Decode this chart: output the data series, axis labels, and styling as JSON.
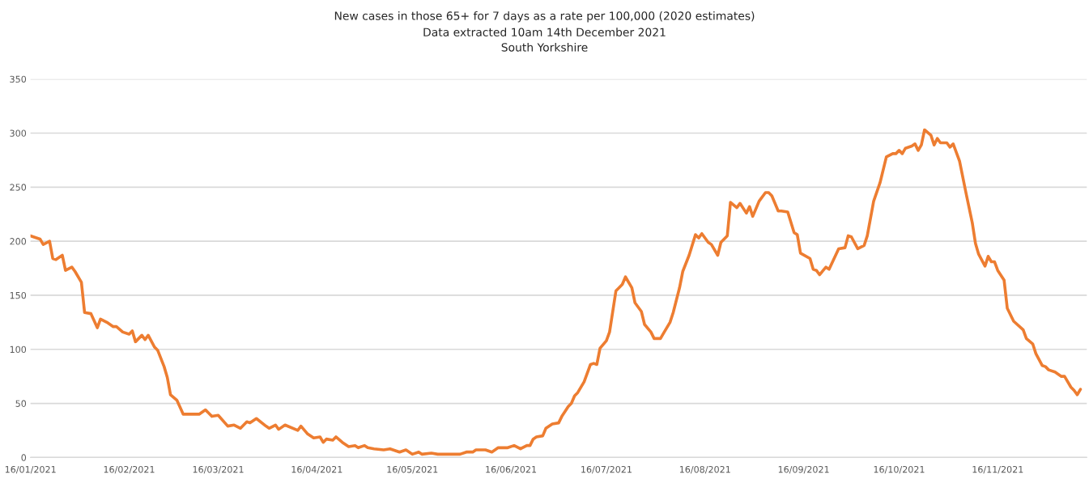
{
  "chart_data": {
    "type": "line",
    "title": "New cases in those 65+ for 7 days as a rate per 100,000 (2020 estimates)",
    "subtitle": "Data extracted 10am 14th December 2021\nSouth Yorkshire",
    "x": [
      "2021-01-16",
      "2021-01-19",
      "2021-01-20",
      "2021-01-22",
      "2021-01-23",
      "2021-01-24",
      "2021-01-26",
      "2021-01-27",
      "2021-01-29",
      "2021-01-30",
      "2021-02-01",
      "2021-02-02",
      "2021-02-04",
      "2021-02-06",
      "2021-02-07",
      "2021-02-09",
      "2021-02-11",
      "2021-02-12",
      "2021-02-14",
      "2021-02-16",
      "2021-02-17",
      "2021-02-18",
      "2021-02-20",
      "2021-02-21",
      "2021-02-22",
      "2021-02-24",
      "2021-02-25",
      "2021-02-27",
      "2021-02-28",
      "2021-03-01",
      "2021-03-03",
      "2021-03-05",
      "2021-03-07",
      "2021-03-09",
      "2021-03-10",
      "2021-03-12",
      "2021-03-14",
      "2021-03-16",
      "2021-03-19",
      "2021-03-21",
      "2021-03-23",
      "2021-03-25",
      "2021-03-26",
      "2021-03-28",
      "2021-03-31",
      "2021-04-01",
      "2021-04-03",
      "2021-04-04",
      "2021-04-06",
      "2021-04-10",
      "2021-04-11",
      "2021-04-13",
      "2021-04-15",
      "2021-04-17",
      "2021-04-18",
      "2021-04-19",
      "2021-04-21",
      "2021-04-22",
      "2021-04-24",
      "2021-04-26",
      "2021-04-28",
      "2021-04-29",
      "2021-05-01",
      "2021-05-02",
      "2021-05-04",
      "2021-05-07",
      "2021-05-09",
      "2021-05-12",
      "2021-05-14",
      "2021-05-16",
      "2021-05-18",
      "2021-05-19",
      "2021-05-22",
      "2021-05-24",
      "2021-05-31",
      "2021-06-02",
      "2021-06-04",
      "2021-06-05",
      "2021-06-08",
      "2021-06-10",
      "2021-06-12",
      "2021-06-15",
      "2021-06-17",
      "2021-06-19",
      "2021-06-21",
      "2021-06-22",
      "2021-06-23",
      "2021-06-24",
      "2021-06-26",
      "2021-06-27",
      "2021-06-29",
      "2021-07-01",
      "2021-07-02",
      "2021-07-04",
      "2021-07-05",
      "2021-07-06",
      "2021-07-07",
      "2021-07-09",
      "2021-07-11",
      "2021-07-12",
      "2021-07-13",
      "2021-07-14",
      "2021-07-16",
      "2021-07-17",
      "2021-07-18",
      "2021-07-19",
      "2021-07-21",
      "2021-07-22",
      "2021-07-24",
      "2021-07-25",
      "2021-07-27",
      "2021-07-28",
      "2021-07-30",
      "2021-07-31",
      "2021-08-02",
      "2021-08-03",
      "2021-08-05",
      "2021-08-06",
      "2021-08-08",
      "2021-08-09",
      "2021-08-11",
      "2021-08-13",
      "2021-08-14",
      "2021-08-15",
      "2021-08-17",
      "2021-08-18",
      "2021-08-20",
      "2021-08-21",
      "2021-08-23",
      "2021-08-24",
      "2021-08-26",
      "2021-08-27",
      "2021-08-29",
      "2021-08-30",
      "2021-08-31",
      "2021-09-02",
      "2021-09-04",
      "2021-09-05",
      "2021-09-06",
      "2021-09-08",
      "2021-09-09",
      "2021-09-11",
      "2021-09-13",
      "2021-09-14",
      "2021-09-15",
      "2021-09-18",
      "2021-09-19",
      "2021-09-20",
      "2021-09-21",
      "2021-09-23",
      "2021-09-24",
      "2021-09-27",
      "2021-09-29",
      "2021-09-30",
      "2021-10-01",
      "2021-10-03",
      "2021-10-05",
      "2021-10-06",
      "2021-10-08",
      "2021-10-10",
      "2021-10-12",
      "2021-10-14",
      "2021-10-15",
      "2021-10-16",
      "2021-10-17",
      "2021-10-18",
      "2021-10-20",
      "2021-10-21",
      "2021-10-22",
      "2021-10-23",
      "2021-10-24",
      "2021-10-26",
      "2021-10-27",
      "2021-10-28",
      "2021-10-29",
      "2021-10-31",
      "2021-11-01",
      "2021-11-02",
      "2021-11-04",
      "2021-11-06",
      "2021-11-08",
      "2021-11-09",
      "2021-11-10",
      "2021-11-12",
      "2021-11-13",
      "2021-11-14",
      "2021-11-15",
      "2021-11-16",
      "2021-11-18",
      "2021-11-19",
      "2021-11-21",
      "2021-11-24",
      "2021-11-25",
      "2021-11-27",
      "2021-11-28",
      "2021-11-30",
      "2021-12-01",
      "2021-12-02",
      "2021-12-04",
      "2021-12-06",
      "2021-12-07",
      "2021-12-09",
      "2021-12-10",
      "2021-12-11",
      "2021-12-12"
    ],
    "series": [
      {
        "color": "#ed7d31",
        "values": [
          205,
          202,
          197,
          200,
          184,
          183,
          187,
          173,
          176,
          172,
          162,
          134,
          133,
          120,
          128,
          125,
          121,
          121,
          116,
          114,
          117,
          107,
          113,
          109,
          113,
          102,
          99,
          84,
          74,
          58,
          53,
          40,
          40,
          40,
          40,
          44,
          38,
          39,
          29,
          30,
          27,
          33,
          32,
          36,
          29,
          27,
          30,
          26,
          30,
          25,
          29,
          22,
          18,
          19,
          14,
          17,
          16,
          19,
          14,
          10,
          11,
          9,
          11,
          9,
          8,
          7,
          8,
          5,
          7,
          3,
          5,
          3,
          4,
          3,
          3,
          5,
          5,
          7,
          7,
          5,
          9,
          9,
          11,
          8,
          11,
          11,
          17,
          19,
          20,
          27,
          31,
          32,
          38,
          47,
          50,
          57,
          60,
          70,
          86,
          87,
          86,
          101,
          108,
          116,
          135,
          154,
          160,
          167,
          157,
          143,
          135,
          123,
          116,
          110,
          110,
          115,
          125,
          134,
          157,
          172,
          187,
          206,
          203,
          207,
          199,
          197,
          187,
          199,
          205,
          236,
          231,
          235,
          226,
          232,
          223,
          237,
          245,
          245,
          242,
          228,
          228,
          227,
          208,
          206,
          189,
          184,
          174,
          173,
          169,
          176,
          174,
          193,
          194,
          205,
          204,
          193,
          196,
          205,
          237,
          254,
          278,
          281,
          281,
          284,
          281,
          286,
          288,
          290,
          284,
          289,
          303,
          298,
          289,
          295,
          291,
          291,
          287,
          290,
          274,
          245,
          217,
          198,
          188,
          177,
          186,
          181,
          181,
          173,
          164,
          138,
          126,
          118,
          110,
          105,
          96,
          85,
          84,
          81,
          79,
          75,
          75,
          65,
          62,
          58,
          63
        ]
      }
    ],
    "xlim": [
      "2021-01-16",
      "2021-12-14"
    ],
    "xticks": [
      {
        "value": "2021-01-16",
        "label": "16/01/2021"
      },
      {
        "value": "2021-02-16",
        "label": "16/02/2021"
      },
      {
        "value": "2021-03-16",
        "label": "16/03/2021"
      },
      {
        "value": "2021-04-16",
        "label": "16/04/2021"
      },
      {
        "value": "2021-05-16",
        "label": "16/05/2021"
      },
      {
        "value": "2021-06-16",
        "label": "16/06/2021"
      },
      {
        "value": "2021-07-16",
        "label": "16/07/2021"
      },
      {
        "value": "2021-08-16",
        "label": "16/08/2021"
      },
      {
        "value": "2021-09-16",
        "label": "16/09/2021"
      },
      {
        "value": "2021-10-16",
        "label": "16/10/2021"
      },
      {
        "value": "2021-11-16",
        "label": "16/11/2021"
      }
    ],
    "ylim": [
      0,
      350
    ],
    "yticks": [
      0,
      50,
      100,
      150,
      200,
      250,
      300,
      350
    ],
    "grid": "y",
    "legend": false,
    "marker": "none",
    "line_style": "solid"
  }
}
